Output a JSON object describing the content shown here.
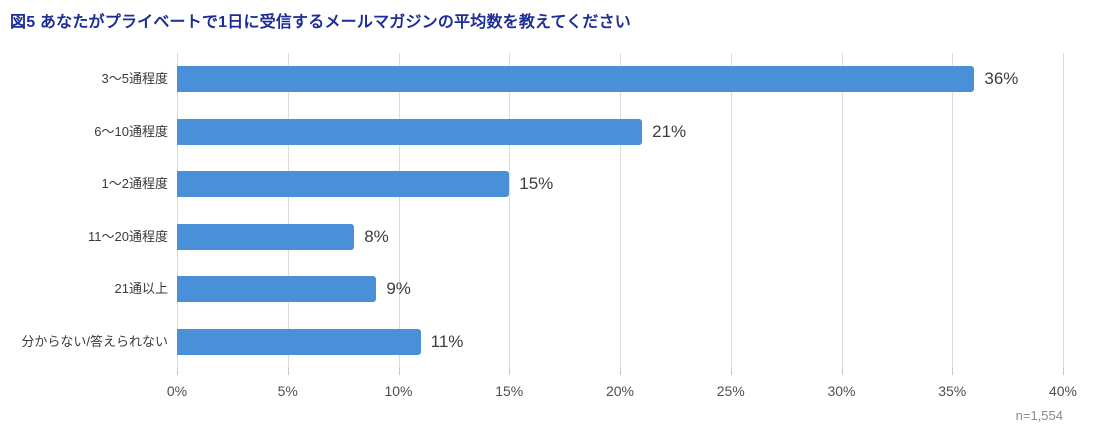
{
  "title": "図5 あなたがプライベートで1日に受信するメールマガジンの平均数を教えてください",
  "note": "n=1,554",
  "colors": {
    "bar": "#4a90d8",
    "title": "#1c2d96",
    "gridline": "#dcdcdc",
    "value_label": "#3d3d3d",
    "axis_label": "#4f4f4f",
    "category_label": "#3a3a3a",
    "note": "#8a8a8a"
  },
  "chart_data": {
    "type": "bar",
    "orientation": "horizontal",
    "title": "図5 あなたがプライベートで1日に受信するメールマガジンの平均数を教えてください",
    "categories": [
      "3〜5通程度",
      "6〜10通程度",
      "1〜2通程度",
      "11〜20通程度",
      "21通以上",
      "分からない/答えられない"
    ],
    "values": [
      36,
      21,
      15,
      8,
      9,
      11
    ],
    "value_labels": [
      "36%",
      "21%",
      "15%",
      "8%",
      "9%",
      "11%"
    ],
    "x_tick_labels": [
      "0%",
      "5%",
      "10%",
      "15%",
      "20%",
      "25%",
      "30%",
      "35%",
      "40%"
    ],
    "x_tick_values": [
      0,
      5,
      10,
      15,
      20,
      25,
      30,
      35,
      40
    ],
    "xlim": [
      0,
      40
    ],
    "grid": true,
    "legend": false,
    "sample_note": "n=1,554"
  }
}
